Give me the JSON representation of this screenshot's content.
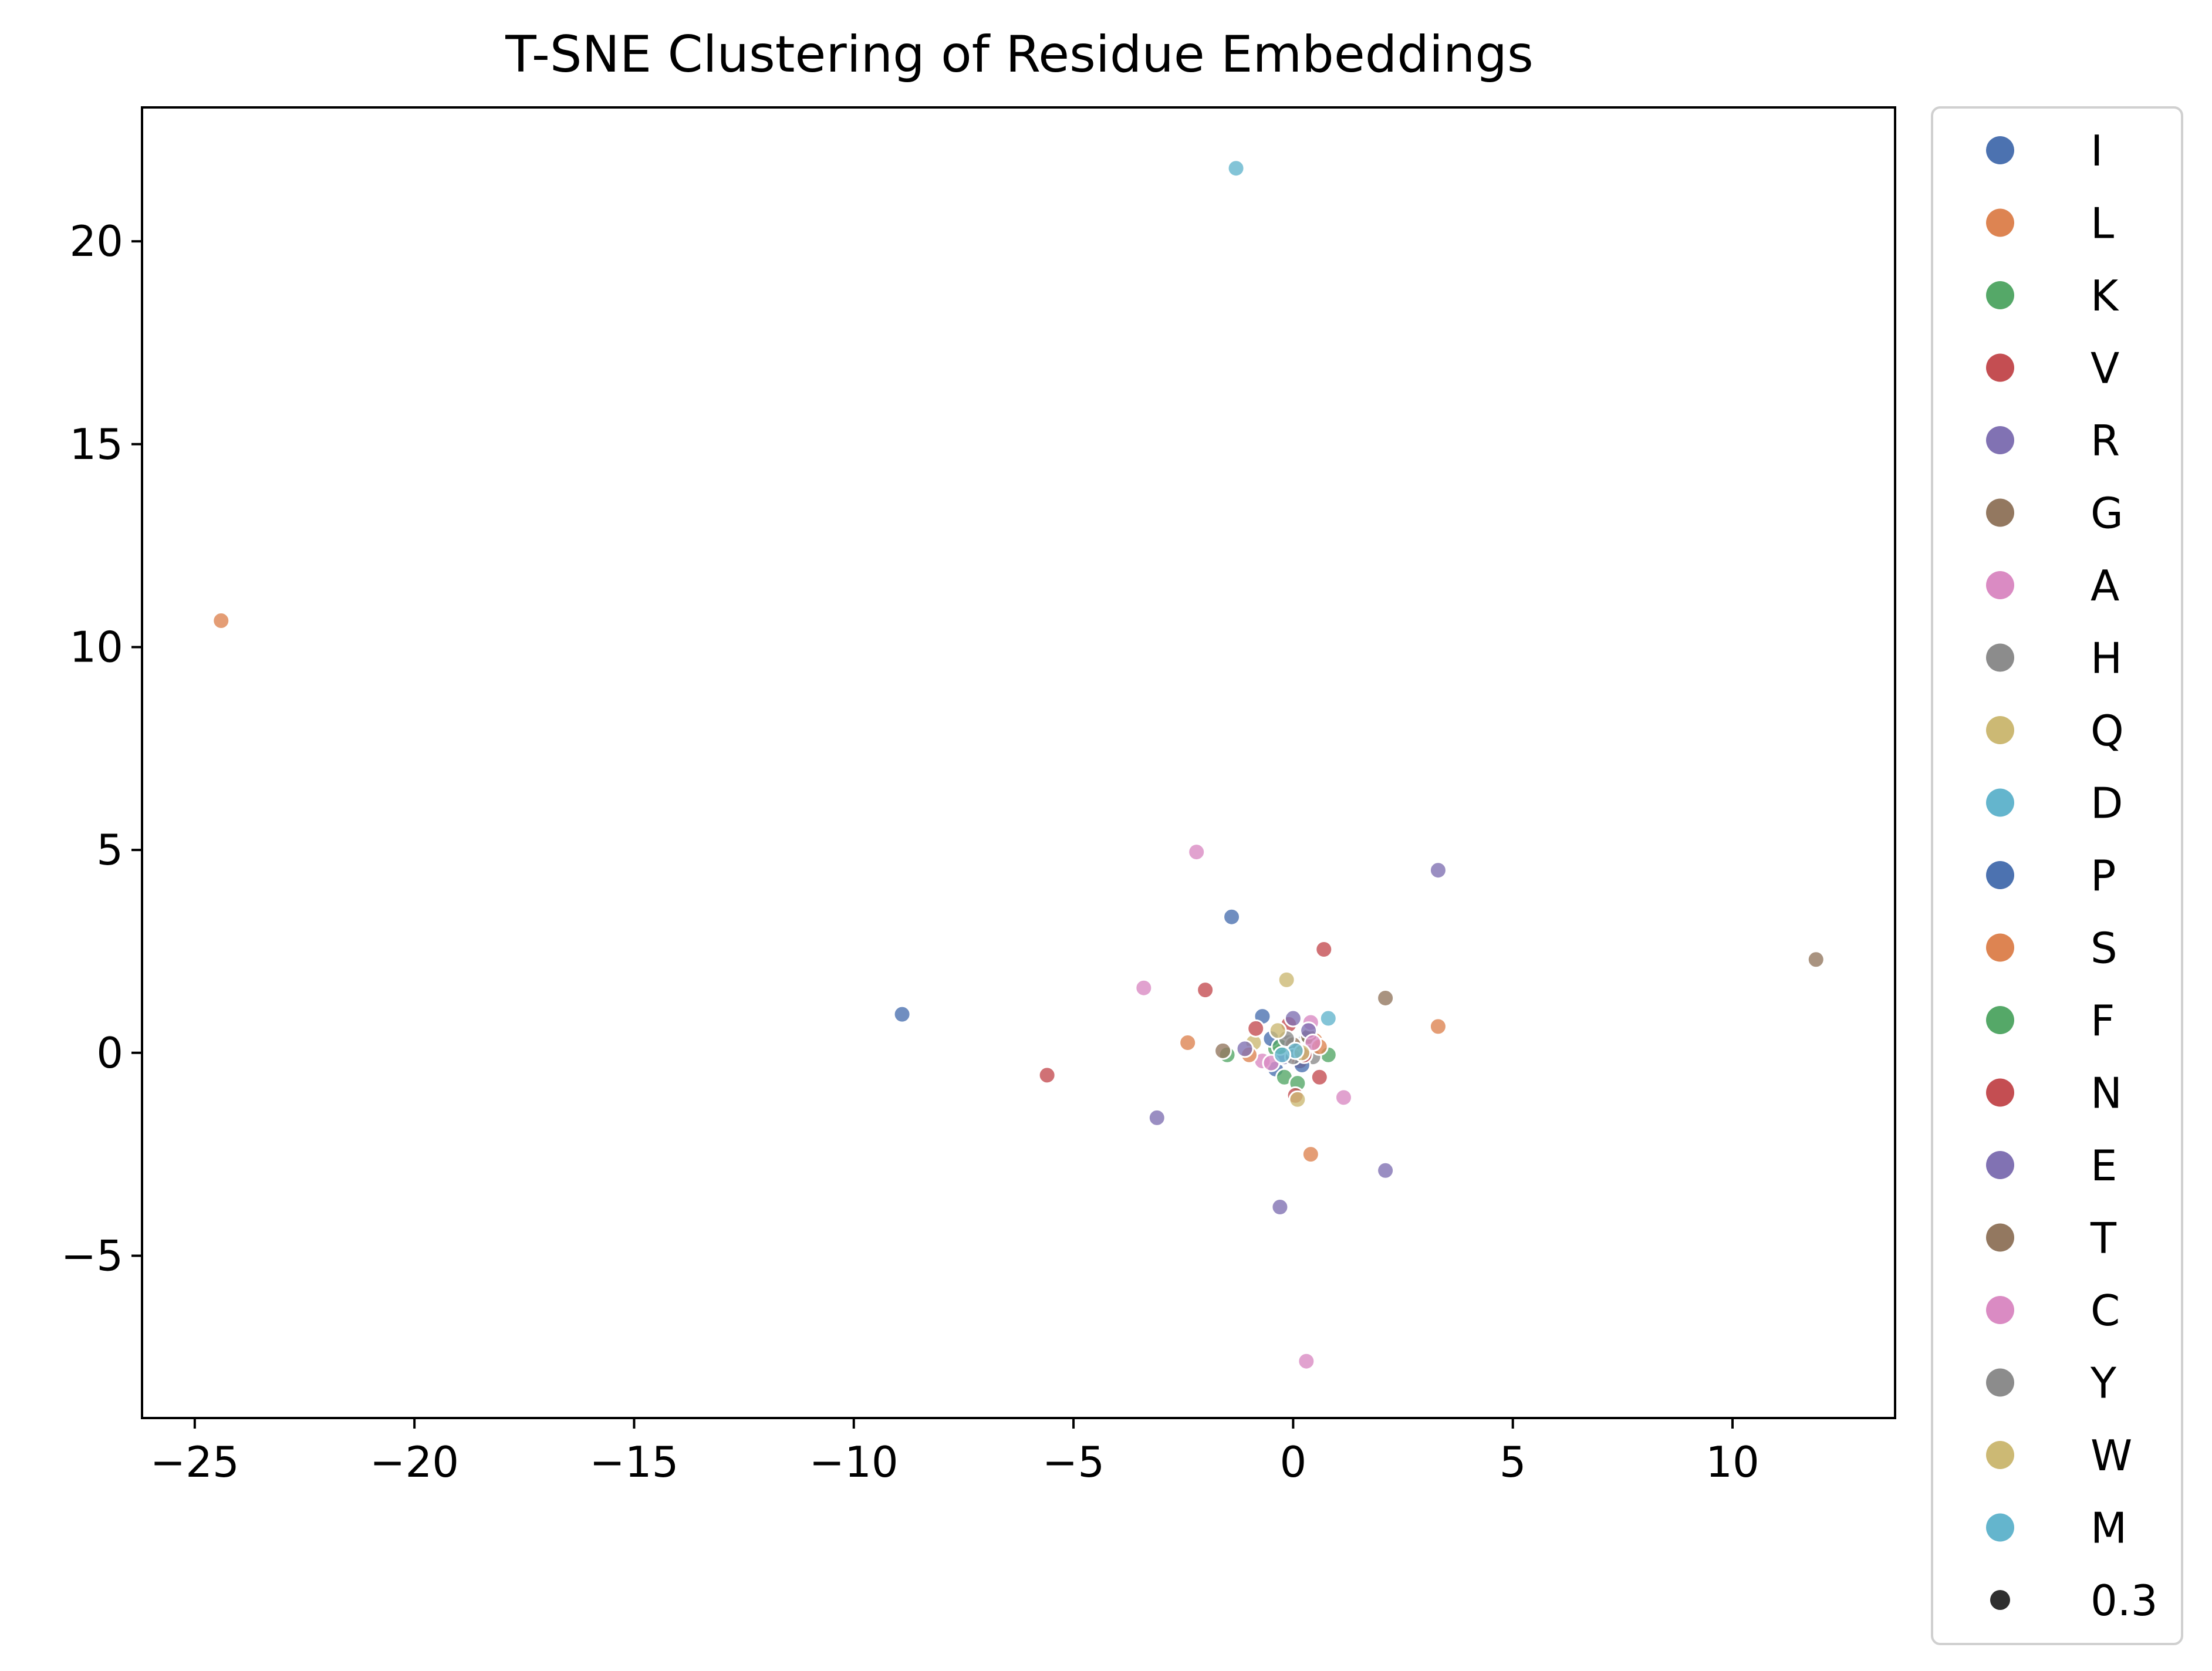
{
  "chart_data": {
    "type": "scatter",
    "title": "T-SNE Clustering of Residue Embeddings",
    "xlabel": "",
    "ylabel": "",
    "xlim": [
      -26.2,
      13.7
    ],
    "ylim": [
      -9.0,
      23.3
    ],
    "xticks": [
      -25,
      -20,
      -15,
      -10,
      -5,
      0,
      5,
      10
    ],
    "yticks": [
      -5,
      0,
      5,
      10,
      15,
      20
    ],
    "xtick_labels": [
      "−25",
      "−20",
      "−15",
      "−10",
      "−5",
      "0",
      "5",
      "10"
    ],
    "ytick_labels": [
      "−5",
      "0",
      "5",
      "10",
      "15",
      "20"
    ],
    "grid": false,
    "legend_position": "outside-right",
    "point_alpha": 0.8,
    "size_legend": {
      "label": "0.3",
      "color": "#2f2f2f"
    },
    "series": [
      {
        "name": "I",
        "color": "#4c72b0",
        "points": [
          [
            -1.4,
            3.35
          ],
          [
            -8.9,
            0.95
          ],
          [
            -0.7,
            0.9
          ],
          [
            0.2,
            0.1
          ],
          [
            -0.4,
            -0.4
          ],
          [
            0.3,
            0.35
          ]
        ]
      },
      {
        "name": "L",
        "color": "#dd8452",
        "points": [
          [
            -24.4,
            10.65
          ],
          [
            3.3,
            0.65
          ],
          [
            0.4,
            -2.5
          ],
          [
            -2.4,
            0.25
          ],
          [
            0.25,
            -0.15
          ],
          [
            0.5,
            0.3
          ]
        ]
      },
      {
        "name": "K",
        "color": "#55a868",
        "points": [
          [
            0.8,
            -0.05
          ],
          [
            -0.2,
            -0.6
          ],
          [
            0.1,
            -0.75
          ],
          [
            -0.4,
            0.1
          ],
          [
            0.3,
            0.2
          ]
        ]
      },
      {
        "name": "V",
        "color": "#c44e52",
        "points": [
          [
            0.7,
            2.55
          ],
          [
            -2.0,
            1.55
          ],
          [
            -5.6,
            -0.55
          ],
          [
            0.6,
            -0.6
          ],
          [
            0.05,
            -1.05
          ],
          [
            -0.1,
            0.7
          ],
          [
            0.15,
            -0.2
          ]
        ]
      },
      {
        "name": "R",
        "color": "#8172b3",
        "points": [
          [
            3.3,
            4.5
          ],
          [
            -3.1,
            -1.6
          ],
          [
            2.1,
            -2.9
          ],
          [
            -0.3,
            -3.8
          ],
          [
            0.0,
            0.85
          ],
          [
            -0.2,
            -0.1
          ]
        ]
      },
      {
        "name": "G",
        "color": "#937860",
        "points": [
          [
            11.9,
            2.3
          ],
          [
            2.1,
            1.35
          ],
          [
            0.0,
            0.15
          ],
          [
            0.35,
            0.4
          ]
        ]
      },
      {
        "name": "A",
        "color": "#da8bc3",
        "points": [
          [
            -2.2,
            4.95
          ],
          [
            -3.4,
            1.6
          ],
          [
            1.15,
            -1.1
          ],
          [
            0.3,
            -7.6
          ],
          [
            -0.7,
            -0.2
          ],
          [
            0.4,
            0.75
          ]
        ]
      },
      {
        "name": "H",
        "color": "#8c8c8c",
        "points": [
          [
            -0.1,
            0.25
          ],
          [
            0.45,
            -0.1
          ]
        ]
      },
      {
        "name": "Q",
        "color": "#ccb974",
        "points": [
          [
            -0.15,
            1.8
          ],
          [
            0.1,
            -1.15
          ],
          [
            -0.9,
            0.25
          ]
        ]
      },
      {
        "name": "D",
        "color": "#64b5cd",
        "points": [
          [
            -1.3,
            21.8
          ],
          [
            0.8,
            0.85
          ],
          [
            0.15,
            0.05
          ]
        ]
      },
      {
        "name": "P",
        "color": "#4c72b0",
        "points": [
          [
            -0.5,
            0.35
          ],
          [
            0.2,
            -0.3
          ]
        ]
      },
      {
        "name": "S",
        "color": "#dd8452",
        "points": [
          [
            -1.0,
            -0.05
          ],
          [
            0.6,
            0.15
          ]
        ]
      },
      {
        "name": "F",
        "color": "#55a868",
        "points": [
          [
            -1.5,
            -0.05
          ],
          [
            -0.3,
            0.15
          ]
        ]
      },
      {
        "name": "N",
        "color": "#c44e52",
        "points": [
          [
            -0.85,
            0.6
          ],
          [
            0.25,
            -0.05
          ]
        ]
      },
      {
        "name": "E",
        "color": "#8172b3",
        "points": [
          [
            -1.1,
            0.1
          ],
          [
            0.35,
            0.55
          ]
        ]
      },
      {
        "name": "T",
        "color": "#937860",
        "points": [
          [
            -1.6,
            0.05
          ],
          [
            0.0,
            0.2
          ]
        ]
      },
      {
        "name": "C",
        "color": "#da8bc3",
        "points": [
          [
            -0.5,
            -0.25
          ],
          [
            0.45,
            0.25
          ]
        ]
      },
      {
        "name": "Y",
        "color": "#8c8c8c",
        "points": [
          [
            0.0,
            -0.1
          ],
          [
            -0.15,
            0.35
          ]
        ]
      },
      {
        "name": "W",
        "color": "#ccb974",
        "points": [
          [
            0.2,
            0.0
          ],
          [
            -0.35,
            0.55
          ]
        ]
      },
      {
        "name": "M",
        "color": "#64b5cd",
        "points": [
          [
            0.05,
            0.05
          ],
          [
            -0.25,
            -0.05
          ]
        ]
      }
    ]
  }
}
